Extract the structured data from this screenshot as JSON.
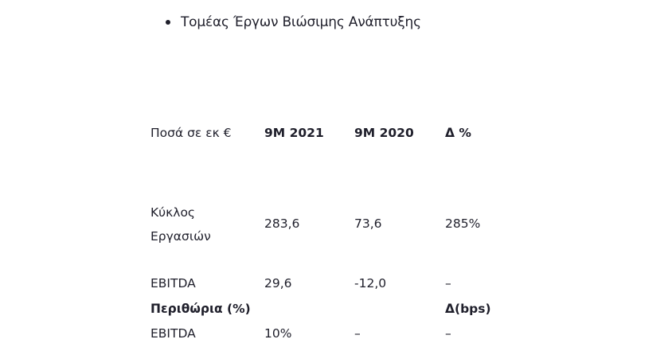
{
  "section": {
    "bullet_title": "Τομέας Έργων Βιώσιμης Ανάπτυξης"
  },
  "table": {
    "header": [
      "Ποσά σε εκ €",
      "9M 2021",
      "9M 2020",
      "Δ %"
    ],
    "rows": [
      {
        "label_line1": "Κύκλος",
        "label_line2": "Εργασιών",
        "v2021": "283,6",
        "v2020": "73,6",
        "delta": "285%"
      },
      {
        "label": "EBITDA",
        "v2021": "29,6",
        "v2020": "-12,0",
        "delta": "–"
      }
    ],
    "margins_header": {
      "label": "Περιθώρια (%)",
      "delta": "Δ(bps)"
    },
    "margin_rows": [
      {
        "label": "EBITDA",
        "v2021": "10%",
        "v2020": "–",
        "delta": "–"
      }
    ]
  }
}
